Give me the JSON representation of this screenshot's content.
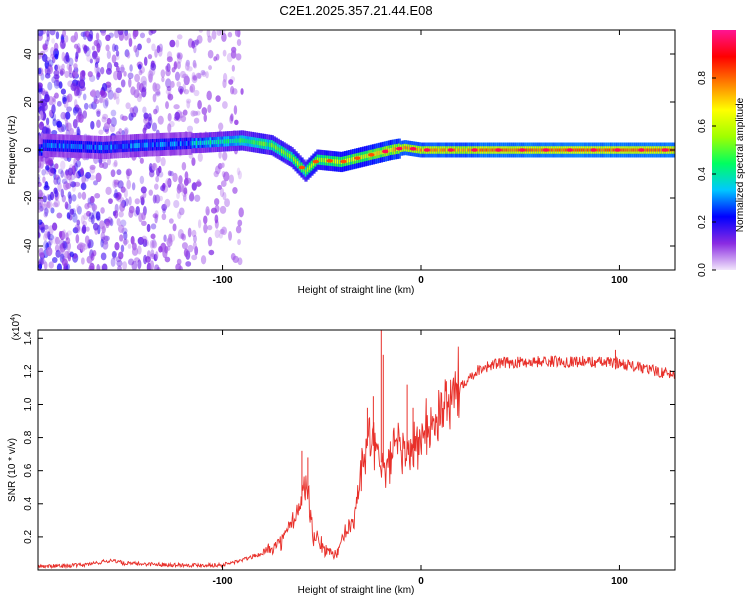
{
  "chart_data": [
    {
      "type": "heatmap",
      "title": "C2E1.2025.357.21.44.E08",
      "xlabel": "Height of straight line (km)",
      "ylabel": "Frequency (Hz)",
      "xlim": [
        -193,
        128
      ],
      "ylim": [
        -50,
        50
      ],
      "x_ticks": [
        -100,
        0,
        100
      ],
      "y_ticks": [
        -40,
        -20,
        0,
        20,
        40
      ],
      "colorbar": {
        "label": "Normalized spectral amplitude",
        "range": [
          0,
          1
        ],
        "ticks": [
          "0.0",
          "0.2",
          "0.4",
          "0.6",
          "0.8"
        ],
        "colors": [
          "#f2e6fb",
          "#8a2be2",
          "#0000ff",
          "#00c8ff",
          "#00ff60",
          "#a0ff00",
          "#ffff00",
          "#ff8000",
          "#ff0000",
          "#ff1493"
        ]
      },
      "ridge_center_hz": [
        {
          "x": -190,
          "y": 2
        },
        {
          "x": -160,
          "y": 1
        },
        {
          "x": -140,
          "y": 2
        },
        {
          "x": -110,
          "y": 3
        },
        {
          "x": -90,
          "y": 4
        },
        {
          "x": -75,
          "y": 2
        },
        {
          "x": -65,
          "y": -3
        },
        {
          "x": -58,
          "y": -9
        },
        {
          "x": -52,
          "y": -4
        },
        {
          "x": -40,
          "y": -5
        },
        {
          "x": -30,
          "y": -3
        },
        {
          "x": -15,
          "y": 0
        },
        {
          "x": -8,
          "y": 1
        },
        {
          "x": 0,
          "y": 0
        },
        {
          "x": 128,
          "y": 0
        }
      ]
    },
    {
      "type": "line",
      "title": "",
      "xlabel": "Height of straight line (km)",
      "ylabel": "SNR (10 * v/v)",
      "scale_label": "(x10",
      "scale_exp": "4",
      "xlim": [
        -193,
        128
      ],
      "ylim": [
        0,
        1.45
      ],
      "x_ticks": [
        -100,
        0,
        100
      ],
      "y_ticks": [
        0.2,
        0.4,
        0.6,
        0.8,
        1.0,
        1.2,
        1.4
      ],
      "color": "#e8302a",
      "series": [
        {
          "name": "SNR",
          "points": [
            {
              "x": -193,
              "y": 0.02
            },
            {
              "x": -170,
              "y": 0.03
            },
            {
              "x": -155,
              "y": 0.06
            },
            {
              "x": -150,
              "y": 0.04
            },
            {
              "x": -120,
              "y": 0.03
            },
            {
              "x": -100,
              "y": 0.03
            },
            {
              "x": -90,
              "y": 0.06
            },
            {
              "x": -80,
              "y": 0.1
            },
            {
              "x": -70,
              "y": 0.18
            },
            {
              "x": -62,
              "y": 0.35
            },
            {
              "x": -58,
              "y": 0.55
            },
            {
              "x": -54,
              "y": 0.2
            },
            {
              "x": -48,
              "y": 0.12
            },
            {
              "x": -42,
              "y": 0.1
            },
            {
              "x": -38,
              "y": 0.22
            },
            {
              "x": -34,
              "y": 0.3
            },
            {
              "x": -30,
              "y": 0.6
            },
            {
              "x": -26,
              "y": 0.8
            },
            {
              "x": -22,
              "y": 0.7
            },
            {
              "x": -18,
              "y": 0.6
            },
            {
              "x": -12,
              "y": 0.75
            },
            {
              "x": -5,
              "y": 0.72
            },
            {
              "x": 0,
              "y": 0.8
            },
            {
              "x": 10,
              "y": 0.95
            },
            {
              "x": 20,
              "y": 1.12
            },
            {
              "x": 30,
              "y": 1.22
            },
            {
              "x": 40,
              "y": 1.25
            },
            {
              "x": 60,
              "y": 1.26
            },
            {
              "x": 80,
              "y": 1.26
            },
            {
              "x": 100,
              "y": 1.25
            },
            {
              "x": 115,
              "y": 1.21
            },
            {
              "x": 128,
              "y": 1.18
            }
          ],
          "spikes": [
            {
              "x": -60,
              "y": 0.72
            },
            {
              "x": -57,
              "y": 0.68
            },
            {
              "x": -27,
              "y": 0.98
            },
            {
              "x": -24,
              "y": 1.05
            },
            {
              "x": -20,
              "y": 1.45
            },
            {
              "x": -19,
              "y": 1.3
            },
            {
              "x": -7,
              "y": 1.12
            },
            {
              "x": -4,
              "y": 0.98
            },
            {
              "x": 98,
              "y": 1.33
            }
          ]
        }
      ]
    }
  ]
}
